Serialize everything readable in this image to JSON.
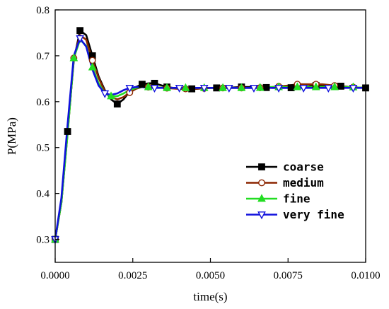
{
  "chart_data": {
    "type": "line",
    "xlabel": "time(s)",
    "ylabel": "P(MPa)",
    "xlim": [
      0,
      0.01
    ],
    "ylim": [
      0.25,
      0.8
    ],
    "xticks": [
      0.0,
      0.0025,
      0.005,
      0.0075,
      0.01
    ],
    "xtick_labels": [
      "0.0000",
      "0.0025",
      "0.0050",
      "0.0075",
      "0.0100"
    ],
    "yticks": [
      0.3,
      0.4,
      0.5,
      0.6,
      0.7,
      0.8
    ],
    "ytick_labels": [
      "0.3",
      "0.4",
      "0.5",
      "0.6",
      "0.7",
      "0.8"
    ],
    "grid": false,
    "legend_position": "bottom-right",
    "series": [
      {
        "name": "coarse",
        "color": "#000000",
        "marker": "square",
        "x": [
          0.0,
          0.0002,
          0.0004,
          0.0006,
          0.0008,
          0.001,
          0.0012,
          0.0014,
          0.0016,
          0.0018,
          0.002,
          0.0022,
          0.0024,
          0.0026,
          0.0028,
          0.003,
          0.0032,
          0.0036,
          0.004,
          0.0045,
          0.005,
          0.0055,
          0.006,
          0.0065,
          0.007,
          0.0075,
          0.008,
          0.0085,
          0.009,
          0.0095,
          0.01
        ],
        "y": [
          0.3,
          0.38,
          0.535,
          0.69,
          0.755,
          0.745,
          0.7,
          0.655,
          0.625,
          0.605,
          0.595,
          0.605,
          0.622,
          0.632,
          0.638,
          0.64,
          0.64,
          0.632,
          0.628,
          0.628,
          0.63,
          0.63,
          0.632,
          0.632,
          0.63,
          0.63,
          0.632,
          0.636,
          0.635,
          0.632,
          0.63
        ],
        "marker_x": [
          0.0,
          0.0004,
          0.0008,
          0.0012,
          0.002,
          0.0028,
          0.0032,
          0.0036,
          0.0044,
          0.0052,
          0.006,
          0.0068,
          0.0076,
          0.0084,
          0.0092,
          0.01
        ]
      },
      {
        "name": "medium",
        "color": "#8b2500",
        "marker": "circle",
        "x": [
          0.0,
          0.0002,
          0.0004,
          0.0006,
          0.0008,
          0.001,
          0.0012,
          0.0014,
          0.0016,
          0.0018,
          0.002,
          0.0022,
          0.0024,
          0.0026,
          0.0028,
          0.003,
          0.0035,
          0.004,
          0.0045,
          0.005,
          0.0055,
          0.006,
          0.0065,
          0.007,
          0.0075,
          0.0078,
          0.0082,
          0.0086,
          0.009,
          0.0095,
          0.01
        ],
        "y": [
          0.3,
          0.38,
          0.53,
          0.695,
          0.745,
          0.735,
          0.69,
          0.652,
          0.622,
          0.61,
          0.605,
          0.61,
          0.62,
          0.628,
          0.632,
          0.632,
          0.63,
          0.628,
          0.628,
          0.63,
          0.63,
          0.63,
          0.63,
          0.632,
          0.635,
          0.638,
          0.638,
          0.638,
          0.635,
          0.632,
          0.63
        ],
        "marker_x": [
          0.0,
          0.0006,
          0.0012,
          0.0024,
          0.003,
          0.0036,
          0.0042,
          0.0048,
          0.0054,
          0.006,
          0.0066,
          0.0072,
          0.0078,
          0.0084,
          0.009,
          0.0096
        ]
      },
      {
        "name": "fine",
        "color": "#22dd22",
        "marker": "triangle-up",
        "x": [
          0.0,
          0.0002,
          0.0004,
          0.0006,
          0.0008,
          0.001,
          0.0012,
          0.0014,
          0.0016,
          0.0018,
          0.002,
          0.0022,
          0.0024,
          0.0026,
          0.0028,
          0.003,
          0.0035,
          0.004,
          0.0045,
          0.005,
          0.0055,
          0.006,
          0.0065,
          0.007,
          0.0075,
          0.008,
          0.0085,
          0.009,
          0.0095,
          0.01
        ],
        "y": [
          0.3,
          0.38,
          0.53,
          0.695,
          0.735,
          0.722,
          0.675,
          0.64,
          0.618,
          0.612,
          0.612,
          0.618,
          0.625,
          0.63,
          0.632,
          0.632,
          0.63,
          0.63,
          0.63,
          0.63,
          0.63,
          0.63,
          0.63,
          0.632,
          0.632,
          0.632,
          0.632,
          0.632,
          0.632,
          0.63
        ],
        "marker_x": [
          0.0,
          0.0006,
          0.0012,
          0.0018,
          0.003,
          0.0036,
          0.0042,
          0.0048,
          0.0054,
          0.006,
          0.0066,
          0.0072,
          0.0078,
          0.0084,
          0.009,
          0.0096
        ]
      },
      {
        "name": "very fine",
        "color": "#1010dd",
        "marker": "triangle-down",
        "x": [
          0.0,
          0.0002,
          0.0004,
          0.0006,
          0.0008,
          0.001,
          0.0012,
          0.0014,
          0.0016,
          0.0018,
          0.002,
          0.0022,
          0.0024,
          0.0026,
          0.0028,
          0.003,
          0.0035,
          0.004,
          0.0045,
          0.005,
          0.0055,
          0.006,
          0.0065,
          0.007,
          0.0075,
          0.008,
          0.0085,
          0.009,
          0.0095,
          0.01
        ],
        "y": [
          0.3,
          0.39,
          0.55,
          0.7,
          0.738,
          0.72,
          0.67,
          0.635,
          0.618,
          0.615,
          0.618,
          0.625,
          0.63,
          0.632,
          0.632,
          0.63,
          0.63,
          0.63,
          0.63,
          0.63,
          0.63,
          0.63,
          0.63,
          0.63,
          0.63,
          0.63,
          0.63,
          0.63,
          0.63,
          0.63
        ],
        "marker_x": [
          0.0,
          0.0008,
          0.0016,
          0.0024,
          0.0032,
          0.004,
          0.0048,
          0.0056,
          0.0064,
          0.0072,
          0.008,
          0.0088,
          0.0096
        ]
      }
    ]
  }
}
